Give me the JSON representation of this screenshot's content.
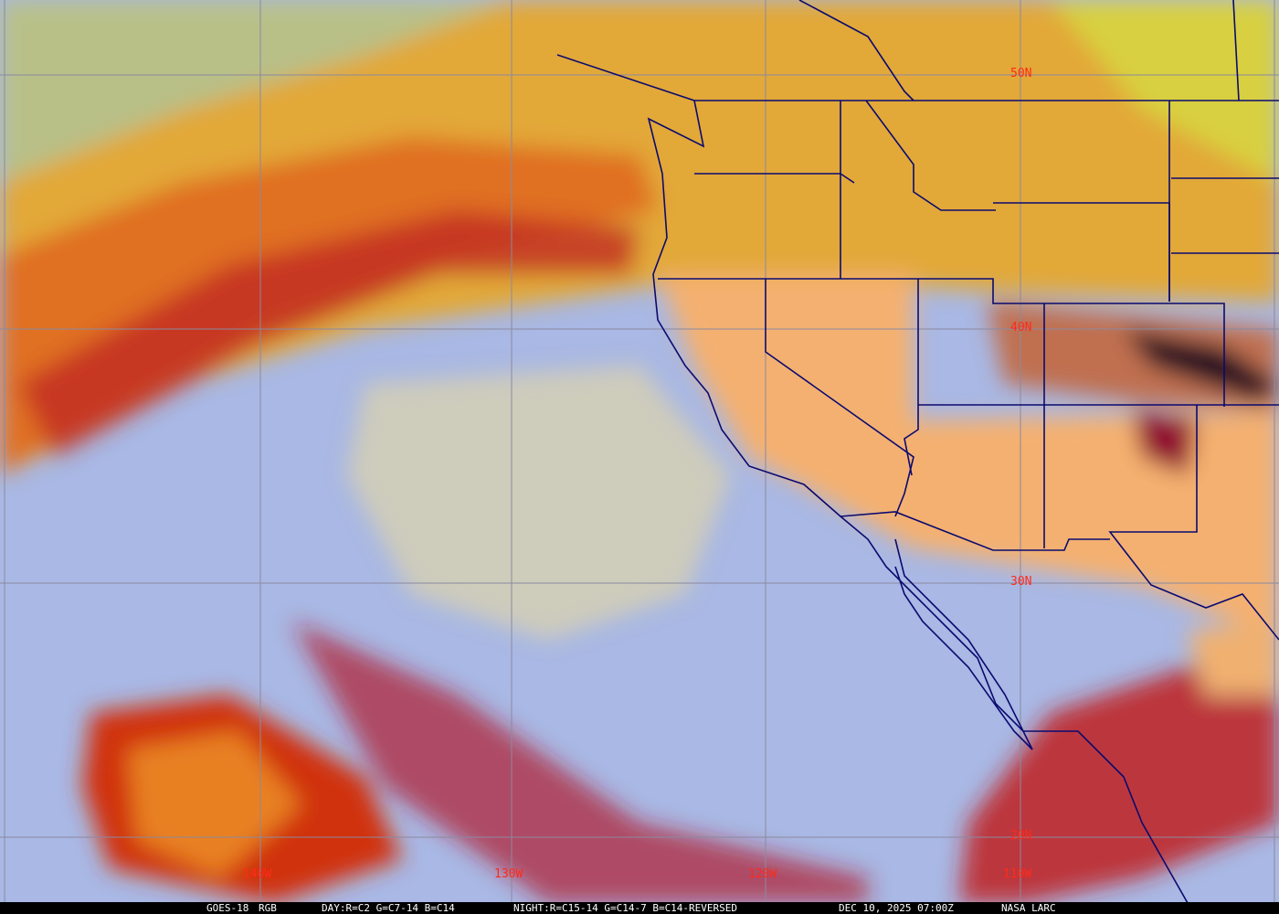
{
  "image": {
    "satellite": "GOES-18",
    "product": "RGB",
    "day_recipe": "DAY:R=C2 G=C7-14 B=C14",
    "night_recipe": "NIGHT:R=C15-14 G=C14-7 B=C14-REVERSED",
    "datetime": "DEC 10, 2025 07:00Z",
    "credit": "NASA LARC"
  },
  "grid": {
    "latitudes": [
      "50N",
      "40N",
      "30N",
      "20N"
    ],
    "longitudes": [
      "140W",
      "130W",
      "120W",
      "110W"
    ]
  },
  "colors": {
    "label": "#ff2a1a",
    "gridline": "#8a8aa0",
    "borders": "#0a0a70",
    "clear_ocean": "#9fb0e0",
    "high_cloud": "#e8a020",
    "thick_cloud": "#b01020"
  }
}
